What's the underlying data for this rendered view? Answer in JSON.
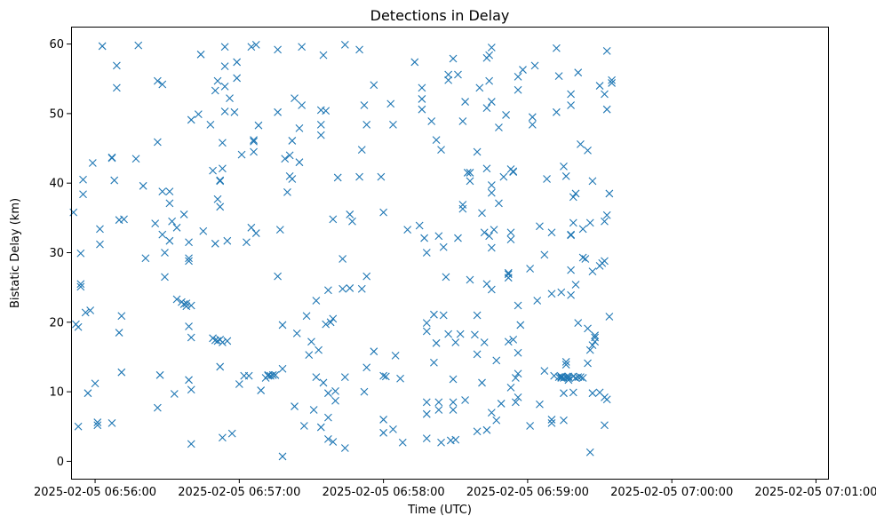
{
  "chart_data": {
    "type": "scatter",
    "title": "Detections in Delay",
    "xlabel": "Time (UTC)",
    "ylabel": "Bistatic Delay (km)",
    "marker": "x",
    "color": "#1f77b4",
    "grid": false,
    "x_start": "2025-02-05 06:55:50",
    "x_end": "2025-02-05 07:01:05",
    "ylim": [
      -2.5,
      62.5
    ],
    "x_ticks": [
      "2025-02-05 06:56:00",
      "2025-02-05 06:57:00",
      "2025-02-05 06:58:00",
      "2025-02-05 06:59:00",
      "2025-02-05 07:00:00",
      "2025-02-05 07:01:00"
    ],
    "y_ticks": [
      0,
      10,
      20,
      30,
      40,
      50,
      60
    ],
    "points_x_seconds": "time axis values are given as seconds past 06:55:50 UTC",
    "points": [
      [
        1,
        35.8
      ],
      [
        2,
        19.7
      ],
      [
        3,
        5.0
      ],
      [
        3,
        19.3
      ],
      [
        4,
        29.9
      ],
      [
        4,
        25.5
      ],
      [
        4,
        25.1
      ],
      [
        5,
        40.5
      ],
      [
        5,
        38.4
      ],
      [
        6,
        21.4
      ],
      [
        7,
        9.8
      ],
      [
        8,
        21.7
      ],
      [
        9,
        42.9
      ],
      [
        10,
        11.2
      ],
      [
        11,
        5.6
      ],
      [
        11,
        5.2
      ],
      [
        12,
        33.4
      ],
      [
        12,
        31.2
      ],
      [
        13,
        59.7
      ],
      [
        17,
        43.7
      ],
      [
        17,
        43.6
      ],
      [
        17,
        5.5
      ],
      [
        18,
        40.4
      ],
      [
        19,
        53.7
      ],
      [
        19,
        56.9
      ],
      [
        20,
        34.7
      ],
      [
        20,
        18.5
      ],
      [
        21,
        20.9
      ],
      [
        21,
        12.8
      ],
      [
        22,
        34.8
      ],
      [
        27,
        43.5
      ],
      [
        28,
        59.8
      ],
      [
        30,
        39.6
      ],
      [
        31,
        29.2
      ],
      [
        35,
        34.2
      ],
      [
        36,
        54.7
      ],
      [
        36,
        45.9
      ],
      [
        36,
        7.7
      ],
      [
        37,
        12.4
      ],
      [
        38,
        54.2
      ],
      [
        38,
        32.6
      ],
      [
        38,
        38.8
      ],
      [
        39,
        30.0
      ],
      [
        39,
        26.5
      ],
      [
        41,
        38.8
      ],
      [
        41,
        37.1
      ],
      [
        41,
        31.7
      ],
      [
        42,
        34.5
      ],
      [
        43,
        9.7
      ],
      [
        44,
        33.6
      ],
      [
        44,
        23.3
      ],
      [
        46,
        22.9
      ],
      [
        47,
        22.6
      ],
      [
        47,
        35.5
      ],
      [
        48,
        22.7
      ],
      [
        48,
        22.3
      ],
      [
        49,
        31.5
      ],
      [
        49,
        29.2
      ],
      [
        49,
        28.8
      ],
      [
        49,
        19.4
      ],
      [
        49,
        11.7
      ],
      [
        50,
        22.4
      ],
      [
        50,
        17.8
      ],
      [
        50,
        10.3
      ],
      [
        50,
        2.5
      ],
      [
        50,
        49.1
      ],
      [
        53,
        49.9
      ],
      [
        54,
        58.5
      ],
      [
        55,
        33.1
      ],
      [
        58,
        48.4
      ],
      [
        59,
        41.8
      ],
      [
        59,
        17.7
      ],
      [
        60,
        53.3
      ],
      [
        60,
        31.3
      ],
      [
        60,
        17.4
      ],
      [
        61,
        17.3
      ],
      [
        61,
        54.7
      ],
      [
        61,
        37.7
      ],
      [
        62,
        40.4
      ],
      [
        62,
        40.3
      ],
      [
        62,
        36.6
      ],
      [
        62,
        17.5
      ],
      [
        62,
        13.6
      ],
      [
        63,
        45.8
      ],
      [
        63,
        42.1
      ],
      [
        63,
        17.1
      ],
      [
        63,
        3.4
      ],
      [
        64,
        56.8
      ],
      [
        64,
        53.9
      ],
      [
        64,
        50.3
      ],
      [
        64,
        59.6
      ],
      [
        65,
        31.7
      ],
      [
        65,
        17.3
      ],
      [
        66,
        52.2
      ],
      [
        67,
        4.0
      ],
      [
        68,
        50.2
      ],
      [
        69,
        57.4
      ],
      [
        69,
        55.1
      ],
      [
        70,
        11.1
      ],
      [
        71,
        44.1
      ],
      [
        72,
        12.3
      ],
      [
        73,
        31.5
      ],
      [
        74,
        12.3
      ],
      [
        75,
        59.6
      ],
      [
        75,
        33.6
      ],
      [
        76,
        46.2
      ],
      [
        76,
        46.0
      ],
      [
        76,
        44.5
      ],
      [
        77,
        32.8
      ],
      [
        77,
        59.9
      ],
      [
        78,
        48.3
      ],
      [
        79,
        10.2
      ],
      [
        81,
        12.0
      ],
      [
        82,
        12.4
      ],
      [
        82,
        12.3
      ],
      [
        83,
        12.3
      ],
      [
        84,
        12.4
      ],
      [
        85,
        12.4
      ],
      [
        86,
        26.6
      ],
      [
        86,
        50.2
      ],
      [
        86,
        59.2
      ],
      [
        87,
        33.3
      ],
      [
        88,
        19.6
      ],
      [
        88,
        13.3
      ],
      [
        88,
        0.7
      ],
      [
        89,
        43.5
      ],
      [
        90,
        38.7
      ],
      [
        91,
        44.0
      ],
      [
        91,
        41.0
      ],
      [
        92,
        40.6
      ],
      [
        92,
        46.1
      ],
      [
        93,
        52.2
      ],
      [
        93,
        7.9
      ],
      [
        94,
        18.4
      ],
      [
        95,
        43.0
      ],
      [
        95,
        47.9
      ],
      [
        96,
        51.2
      ],
      [
        96,
        59.6
      ],
      [
        97,
        5.1
      ],
      [
        98,
        20.9
      ],
      [
        99,
        15.3
      ],
      [
        100,
        17.2
      ],
      [
        101,
        7.4
      ],
      [
        102,
        12.1
      ],
      [
        102,
        23.1
      ],
      [
        103,
        16.0
      ],
      [
        104,
        4.9
      ],
      [
        104,
        50.5
      ],
      [
        104,
        48.4
      ],
      [
        104,
        46.9
      ],
      [
        105,
        58.4
      ],
      [
        105,
        11.3
      ],
      [
        106,
        50.4
      ],
      [
        106,
        19.7
      ],
      [
        107,
        24.6
      ],
      [
        107,
        9.8
      ],
      [
        107,
        6.3
      ],
      [
        107,
        3.2
      ],
      [
        108,
        20.0
      ],
      [
        109,
        34.8
      ],
      [
        109,
        2.8
      ],
      [
        109,
        20.5
      ],
      [
        110,
        10.1
      ],
      [
        110,
        8.7
      ],
      [
        111,
        40.8
      ],
      [
        113,
        24.8
      ],
      [
        113,
        29.1
      ],
      [
        114,
        59.9
      ],
      [
        114,
        1.9
      ],
      [
        114,
        12.1
      ],
      [
        116,
        35.5
      ],
      [
        116,
        24.9
      ],
      [
        117,
        34.5
      ],
      [
        120,
        59.2
      ],
      [
        120,
        40.9
      ],
      [
        121,
        24.8
      ],
      [
        121,
        44.8
      ],
      [
        122,
        51.2
      ],
      [
        122,
        10.0
      ],
      [
        123,
        48.4
      ],
      [
        123,
        26.6
      ],
      [
        123,
        13.5
      ],
      [
        126,
        54.1
      ],
      [
        126,
        15.8
      ],
      [
        129,
        40.9
      ],
      [
        130,
        35.8
      ],
      [
        130,
        12.3
      ],
      [
        130,
        6.0
      ],
      [
        130,
        4.1
      ],
      [
        131,
        12.2
      ],
      [
        133,
        51.4
      ],
      [
        134,
        48.4
      ],
      [
        134,
        4.6
      ],
      [
        135,
        15.2
      ],
      [
        137,
        11.9
      ],
      [
        138,
        2.7
      ],
      [
        140,
        33.3
      ],
      [
        143,
        57.4
      ],
      [
        145,
        33.9
      ],
      [
        146,
        52.1
      ],
      [
        146,
        50.6
      ],
      [
        146,
        53.7
      ],
      [
        147,
        32.1
      ],
      [
        148,
        30.0
      ],
      [
        148,
        19.9
      ],
      [
        148,
        18.7
      ],
      [
        148,
        8.5
      ],
      [
        148,
        6.8
      ],
      [
        148,
        3.3
      ],
      [
        150,
        48.9
      ],
      [
        151,
        21.1
      ],
      [
        151,
        14.2
      ],
      [
        152,
        46.2
      ],
      [
        152,
        17.0
      ],
      [
        153,
        32.4
      ],
      [
        153,
        8.5
      ],
      [
        153,
        7.4
      ],
      [
        154,
        44.8
      ],
      [
        154,
        2.7
      ],
      [
        155,
        30.8
      ],
      [
        155,
        21.0
      ],
      [
        156,
        26.5
      ],
      [
        157,
        55.6
      ],
      [
        157,
        54.8
      ],
      [
        157,
        18.3
      ],
      [
        158,
        3.0
      ],
      [
        159,
        57.9
      ],
      [
        159,
        11.8
      ],
      [
        159,
        8.5
      ],
      [
        159,
        7.4
      ],
      [
        160,
        17.1
      ],
      [
        160,
        3.1
      ],
      [
        161,
        32.1
      ],
      [
        161,
        55.6
      ],
      [
        162,
        18.3
      ],
      [
        163,
        48.9
      ],
      [
        163,
        36.9
      ],
      [
        163,
        36.3
      ],
      [
        164,
        51.7
      ],
      [
        164,
        8.8
      ],
      [
        165,
        41.5
      ],
      [
        166,
        40.3
      ],
      [
        166,
        41.5
      ],
      [
        166,
        26.1
      ],
      [
        168,
        18.2
      ],
      [
        169,
        44.5
      ],
      [
        169,
        21.0
      ],
      [
        169,
        15.4
      ],
      [
        169,
        4.3
      ],
      [
        170,
        53.7
      ],
      [
        171,
        35.7
      ],
      [
        171,
        11.3
      ],
      [
        172,
        32.9
      ],
      [
        172,
        17.1
      ],
      [
        173,
        58.0
      ],
      [
        173,
        50.8
      ],
      [
        173,
        42.1
      ],
      [
        173,
        25.5
      ],
      [
        173,
        4.5
      ],
      [
        174,
        58.4
      ],
      [
        174,
        54.7
      ],
      [
        174,
        32.4
      ],
      [
        175,
        59.5
      ],
      [
        175,
        51.7
      ],
      [
        175,
        39.7
      ],
      [
        175,
        38.6
      ],
      [
        175,
        30.7
      ],
      [
        175,
        24.7
      ],
      [
        175,
        7.0
      ],
      [
        176,
        33.3
      ],
      [
        177,
        14.5
      ],
      [
        177,
        5.9
      ],
      [
        178,
        48.0
      ],
      [
        178,
        37.1
      ],
      [
        179,
        8.3
      ],
      [
        180,
        40.9
      ],
      [
        181,
        49.8
      ],
      [
        182,
        26.4
      ],
      [
        182,
        26.9
      ],
      [
        182,
        27.1
      ],
      [
        182,
        17.2
      ],
      [
        183,
        32.9
      ],
      [
        183,
        31.9
      ],
      [
        183,
        10.6
      ],
      [
        183,
        42.0
      ],
      [
        184,
        41.7
      ],
      [
        184,
        41.6
      ],
      [
        184,
        17.5
      ],
      [
        185,
        12.0
      ],
      [
        185,
        8.5
      ],
      [
        186,
        12.6
      ],
      [
        186,
        9.2
      ],
      [
        186,
        15.6
      ],
      [
        186,
        22.4
      ],
      [
        186,
        53.4
      ],
      [
        186,
        55.3
      ],
      [
        187,
        19.6
      ],
      [
        188,
        56.3
      ],
      [
        191,
        27.7
      ],
      [
        191,
        5.1
      ],
      [
        192,
        49.5
      ],
      [
        192,
        48.4
      ],
      [
        193,
        56.9
      ],
      [
        194,
        23.1
      ],
      [
        195,
        33.8
      ],
      [
        195,
        8.2
      ],
      [
        197,
        29.7
      ],
      [
        197,
        13.0
      ],
      [
        198,
        40.6
      ],
      [
        200,
        6.0
      ],
      [
        200,
        5.5
      ],
      [
        200,
        32.9
      ],
      [
        200,
        24.1
      ],
      [
        201,
        12.3
      ],
      [
        202,
        59.4
      ],
      [
        202,
        50.2
      ],
      [
        203,
        55.4
      ],
      [
        203,
        12.1
      ],
      [
        204,
        12.1
      ],
      [
        204,
        12.2
      ],
      [
        204,
        24.3
      ],
      [
        204,
        12.0
      ],
      [
        205,
        42.4
      ],
      [
        205,
        12.0
      ],
      [
        205,
        9.8
      ],
      [
        205,
        5.9
      ],
      [
        206,
        41.0
      ],
      [
        206,
        12.1
      ],
      [
        206,
        13.9
      ],
      [
        206,
        14.3
      ],
      [
        207,
        12.0
      ],
      [
        207,
        11.7
      ],
      [
        207,
        12.2
      ],
      [
        208,
        32.6
      ],
      [
        208,
        32.5
      ],
      [
        208,
        27.5
      ],
      [
        208,
        23.9
      ],
      [
        208,
        52.8
      ],
      [
        208,
        51.2
      ],
      [
        209,
        38.0
      ],
      [
        209,
        34.3
      ],
      [
        209,
        9.9
      ],
      [
        209,
        12.2
      ],
      [
        210,
        25.4
      ],
      [
        210,
        38.5
      ],
      [
        210,
        12.0
      ],
      [
        211,
        55.9
      ],
      [
        211,
        19.9
      ],
      [
        211,
        12.1
      ],
      [
        212,
        12.1
      ],
      [
        212,
        45.6
      ],
      [
        213,
        29.3
      ],
      [
        213,
        33.4
      ],
      [
        213,
        12.0
      ],
      [
        214,
        29.1
      ],
      [
        215,
        14.1
      ],
      [
        215,
        19.1
      ],
      [
        215,
        44.7
      ],
      [
        216,
        34.3
      ],
      [
        216,
        1.3
      ],
      [
        216,
        16.0
      ],
      [
        217,
        27.3
      ],
      [
        217,
        40.3
      ],
      [
        217,
        16.7
      ],
      [
        217,
        9.8
      ],
      [
        218,
        17.2
      ],
      [
        218,
        17.8
      ],
      [
        218,
        18.1
      ],
      [
        220,
        54.0
      ],
      [
        220,
        28.1
      ],
      [
        220,
        9.9
      ],
      [
        221,
        28.5
      ],
      [
        222,
        52.8
      ],
      [
        222,
        34.5
      ],
      [
        222,
        9.2
      ],
      [
        222,
        5.2
      ],
      [
        222,
        28.8
      ],
      [
        223,
        50.6
      ],
      [
        223,
        35.4
      ],
      [
        223,
        59.0
      ],
      [
        223,
        8.9
      ],
      [
        224,
        38.5
      ],
      [
        224,
        20.8
      ],
      [
        225,
        54.4
      ],
      [
        225,
        54.8
      ]
    ]
  }
}
